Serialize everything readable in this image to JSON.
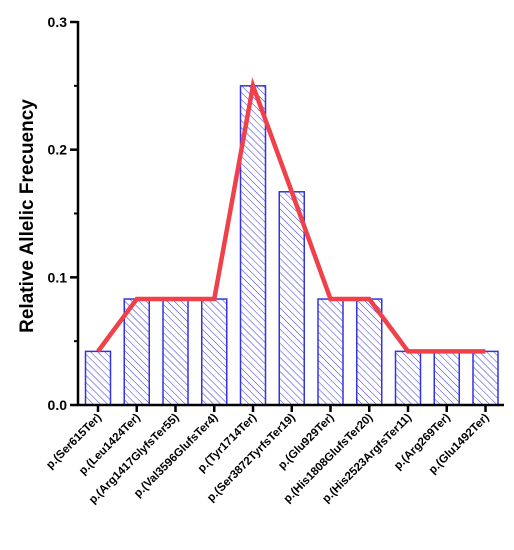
{
  "chart_data": {
    "type": "bar",
    "ylabel": "Relative Allelic Frecuency",
    "ylim": [
      0,
      0.3
    ],
    "yticks": [
      "0.0",
      "0.1",
      "0.2",
      "0.3"
    ],
    "categories": [
      "p.(Ser615Ter)",
      "p.(Leu1424Ter)",
      "p.(Arg1417GlyfsTer55)",
      "p.(Val3596GlufsTer4)",
      "p.(Tyr1714Ter)",
      "p.(Ser3872TyrfsTer19)",
      "p.(Glu929Ter)",
      "p.(His1808GlufsTer20)",
      "p.(His2523ArgfsTer11)",
      "p.(Arg269Ter)",
      "p.(Glu1492Ter)"
    ],
    "values": [
      0.042,
      0.083,
      0.083,
      0.083,
      0.25,
      0.167,
      0.083,
      0.083,
      0.042,
      0.042,
      0.042
    ],
    "line_values": [
      0.042,
      0.083,
      0.083,
      0.083,
      0.25,
      0.167,
      0.083,
      0.083,
      0.042,
      0.042,
      0.042
    ],
    "colors": {
      "bar_stroke": "#3333e6",
      "hatch": "#3333e6",
      "line": "#f0404a",
      "axis": "#000000"
    },
    "grid": false,
    "legend": "none"
  }
}
